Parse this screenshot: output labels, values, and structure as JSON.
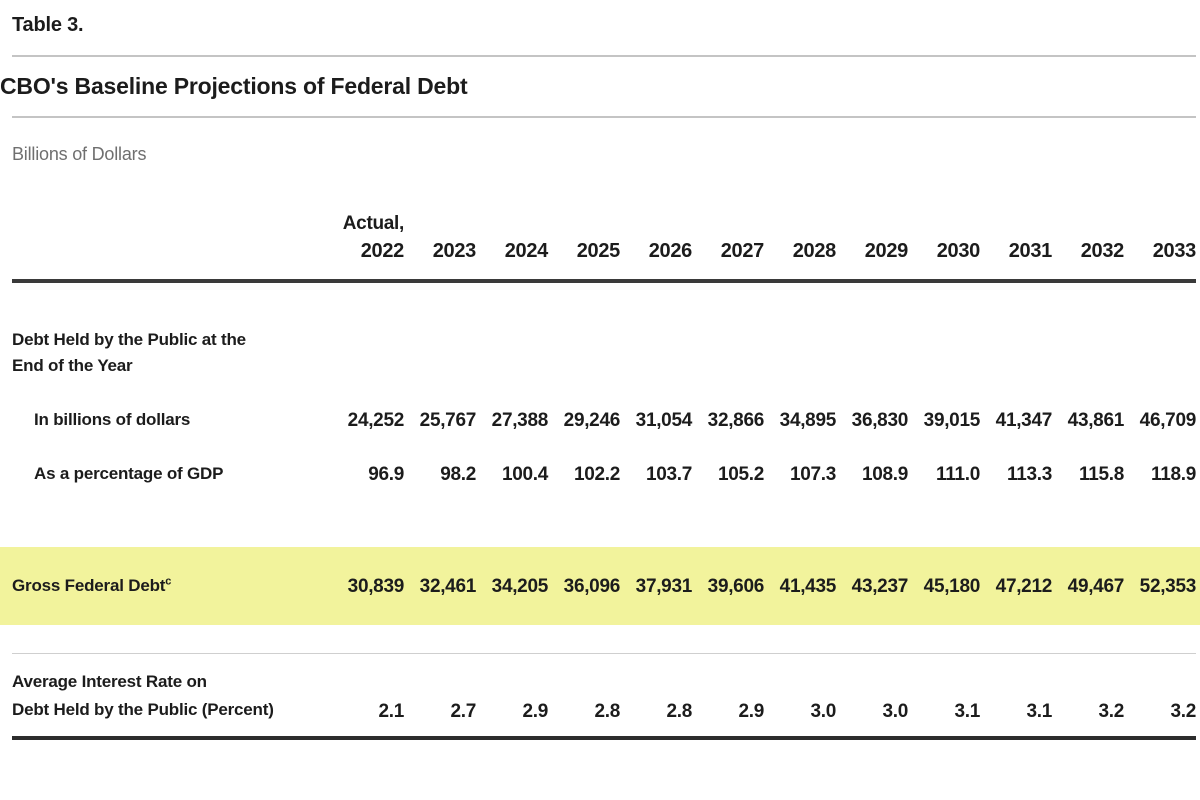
{
  "header": {
    "table_label": "Table 3.",
    "title": "CBO's Baseline Projections of Federal Debt",
    "units": "Billions of Dollars"
  },
  "columns": {
    "actual_note": "Actual,",
    "years": [
      "2022",
      "2023",
      "2024",
      "2025",
      "2026",
      "2027",
      "2028",
      "2029",
      "2030",
      "2031",
      "2032",
      "2033"
    ]
  },
  "rows": {
    "public_debt_group": {
      "line1": "Debt Held by the Public at the",
      "line2": "End of the Year"
    },
    "in_billions": {
      "label": "In billions of dollars",
      "values": [
        "24,252",
        "25,767",
        "27,388",
        "29,246",
        "31,054",
        "32,866",
        "34,895",
        "36,830",
        "39,015",
        "41,347",
        "43,861",
        "46,709"
      ]
    },
    "pct_gdp": {
      "label": "As a percentage of GDP",
      "values": [
        "96.9",
        "98.2",
        "100.4",
        "102.2",
        "103.7",
        "105.2",
        "107.3",
        "108.9",
        "111.0",
        "113.3",
        "115.8",
        "118.9"
      ]
    },
    "gross_debt": {
      "label": "Gross Federal Debt",
      "footnote_marker": "c",
      "values": [
        "30,839",
        "32,461",
        "34,205",
        "36,096",
        "37,931",
        "39,606",
        "41,435",
        "43,237",
        "45,180",
        "47,212",
        "49,467",
        "52,353"
      ]
    },
    "avg_interest": {
      "line1": "Average Interest Rate on",
      "line2": "Debt Held by the Public (Percent)",
      "values": [
        "2.1",
        "2.7",
        "2.9",
        "2.8",
        "2.8",
        "2.9",
        "3.0",
        "3.0",
        "3.1",
        "3.1",
        "3.2",
        "3.2"
      ]
    }
  },
  "colors": {
    "highlight_row": "#f2f39c",
    "rule_dark": "#3a3a3a",
    "rule_light": "#c4c4c4",
    "units_text": "#6f6f6f"
  }
}
